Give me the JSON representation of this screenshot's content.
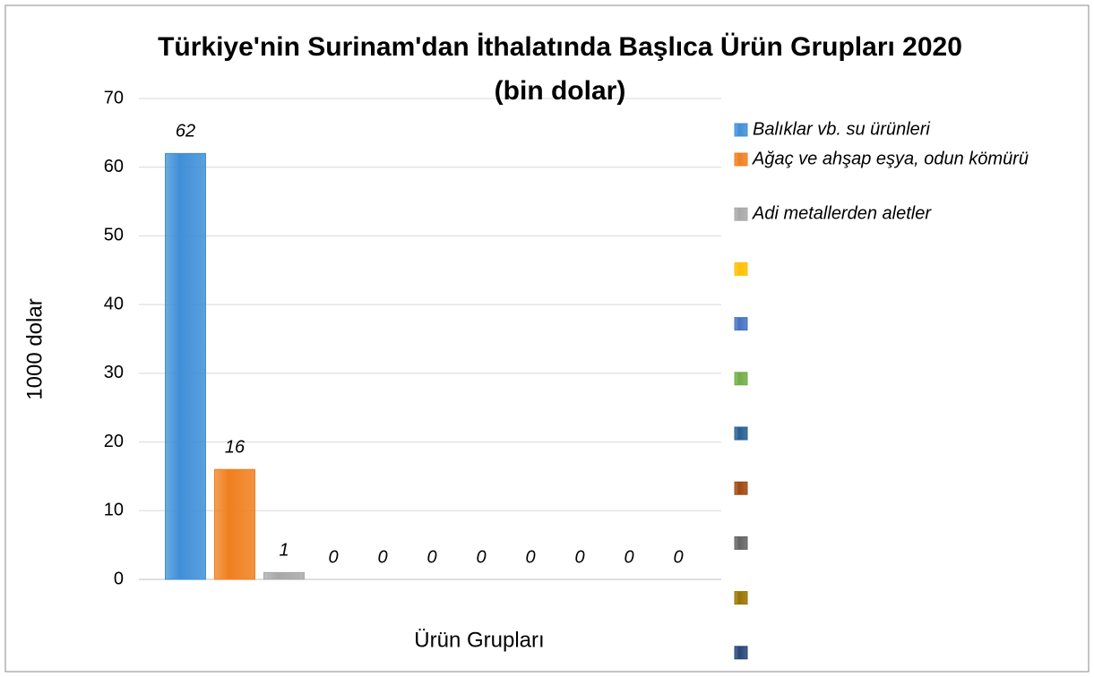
{
  "chart_data": {
    "type": "bar",
    "title": "Türkiye'nin Surinam'dan İthalatında Başlıca Ürün Grupları 2020 (bin dolar)",
    "y_label": "1000 dolar",
    "x_label": "Ürün Grupları",
    "ylim": [
      0,
      70
    ],
    "yticks": [
      0,
      10,
      20,
      30,
      40,
      50,
      60,
      70
    ],
    "grid": true,
    "legend": "right",
    "series": [
      {
        "name": "Balıklar vb. su ürünleri",
        "color": "#3f8fd8",
        "values": [
          62
        ]
      },
      {
        "name": "Ağaç ve ahşap eşya, odun kömürü",
        "color": "#f07f1e",
        "values": [
          16
        ]
      },
      {
        "name": "Adi metallerden aletler",
        "color": "#a8a8a8",
        "values": [
          1
        ]
      },
      {
        "name": null,
        "color": "#ffc000",
        "values": [
          0
        ]
      },
      {
        "name": null,
        "color": "#4472c4",
        "values": [
          0
        ]
      },
      {
        "name": null,
        "color": "#70ad47",
        "values": [
          0
        ]
      },
      {
        "name": null,
        "color": "#255e91",
        "values": [
          0
        ]
      },
      {
        "name": null,
        "color": "#9e480e",
        "values": [
          0
        ]
      },
      {
        "name": null,
        "color": "#636363",
        "values": [
          0
        ]
      },
      {
        "name": null,
        "color": "#997300",
        "values": [
          0
        ]
      },
      {
        "name": null,
        "color": "#264478",
        "values": [
          0
        ]
      }
    ]
  }
}
